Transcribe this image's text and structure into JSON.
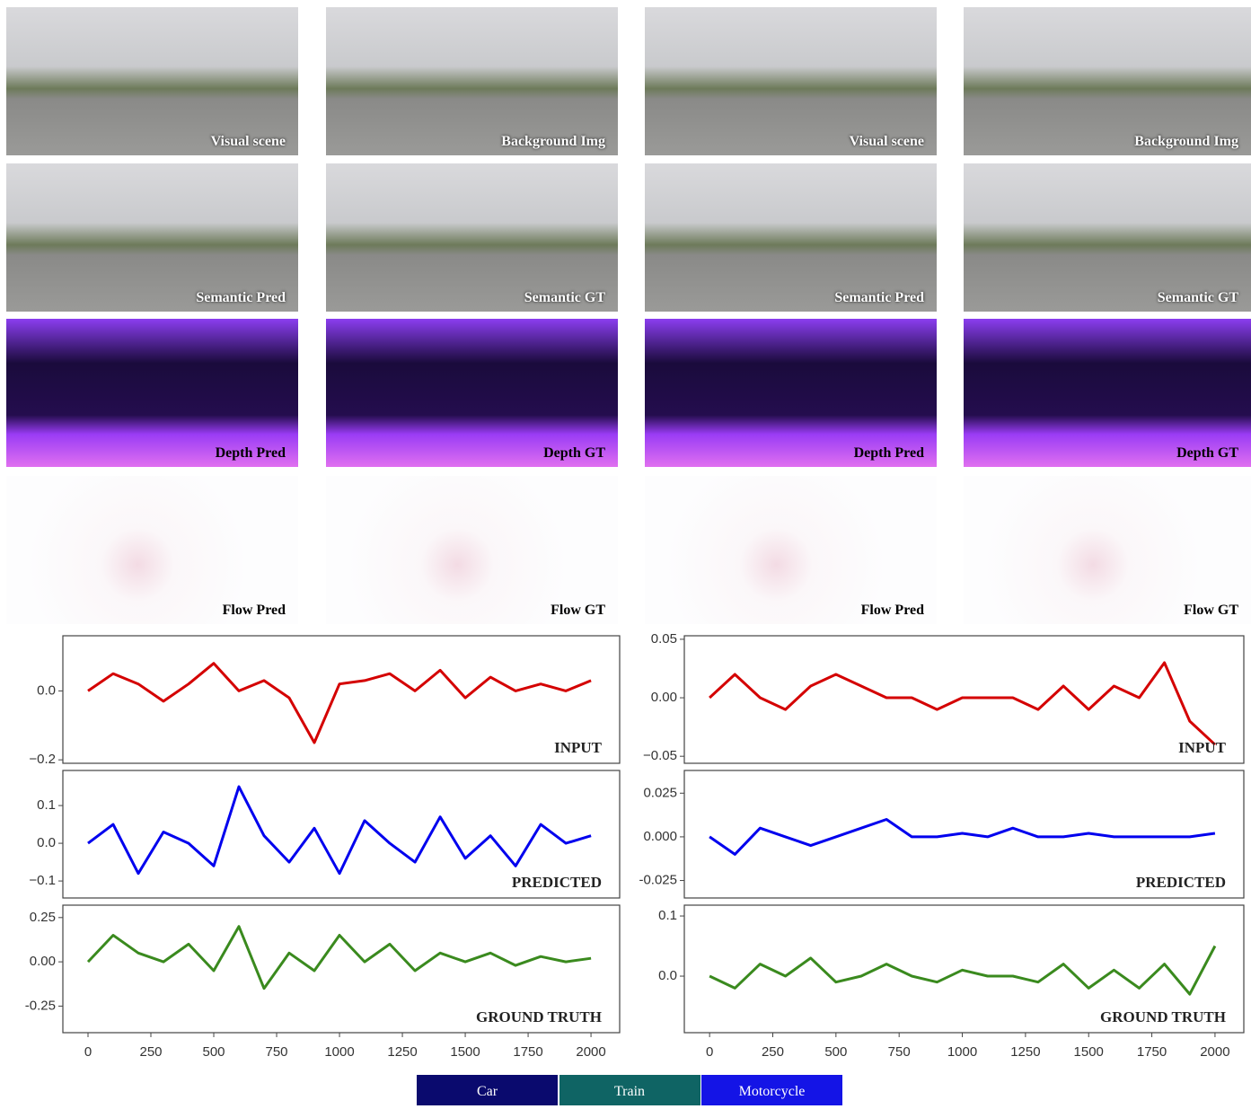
{
  "image_grid": {
    "rows": [
      [
        "Visual scene",
        "Background Img",
        "Visual scene",
        "Background Img"
      ],
      [
        "Semantic Pred",
        "Semantic GT",
        "Semantic Pred",
        "Semantic GT"
      ],
      [
        "Depth Pred",
        "Depth GT",
        "Depth Pred",
        "Depth GT"
      ],
      [
        "Flow Pred",
        "Flow GT",
        "Flow Pred",
        "Flow GT"
      ]
    ]
  },
  "chart_data": [
    {
      "type": "line",
      "label": "INPUT",
      "color": "#d40000",
      "xlim": [
        -100,
        2114
      ],
      "ylim": [
        -0.21,
        0.16
      ],
      "yticks": [
        {
          "value": 0,
          "label": "0.0"
        },
        {
          "value": -0.2,
          "label": "−0.2"
        }
      ],
      "x": [
        0,
        100,
        200,
        300,
        400,
        500,
        600,
        700,
        800,
        900,
        1000,
        1100,
        1200,
        1300,
        1400,
        1500,
        1600,
        1700,
        1800,
        1900,
        2000
      ],
      "values": [
        0.0,
        0.05,
        0.02,
        -0.03,
        0.02,
        0.08,
        0.0,
        0.03,
        -0.02,
        -0.15,
        0.02,
        0.03,
        0.05,
        0.0,
        0.06,
        -0.02,
        0.04,
        0.0,
        0.02,
        0.0,
        0.03
      ]
    },
    {
      "type": "line",
      "label": "PREDICTED",
      "color": "#0000ee",
      "xlim": [
        -100,
        2114
      ],
      "ylim": [
        -0.145,
        0.193
      ],
      "yticks": [
        {
          "value": 0.1,
          "label": "0.1"
        },
        {
          "value": 0,
          "label": "0.0"
        },
        {
          "value": -0.1,
          "label": "−0.1"
        }
      ],
      "x": [
        0,
        100,
        200,
        300,
        400,
        500,
        600,
        700,
        800,
        900,
        1000,
        1100,
        1200,
        1300,
        1400,
        1500,
        1600,
        1700,
        1800,
        1900,
        2000
      ],
      "values": [
        0.0,
        0.05,
        -0.08,
        0.03,
        0.0,
        -0.06,
        0.15,
        0.02,
        -0.05,
        0.04,
        -0.08,
        0.06,
        0.0,
        -0.05,
        0.07,
        -0.04,
        0.02,
        -0.06,
        0.05,
        0.0,
        0.02
      ]
    },
    {
      "type": "line",
      "label": "GROUND TRUTH",
      "color": "#3a8a1e",
      "xlim": [
        -100,
        2114
      ],
      "ylim": [
        -0.4,
        0.32
      ],
      "yticks": [
        0.25,
        {
          "value": 0,
          "label": "0.00"
        },
        -0.25
      ],
      "xticks": [
        0,
        250,
        500,
        750,
        1000,
        1250,
        1500,
        1750,
        2000
      ],
      "x": [
        0,
        100,
        200,
        300,
        400,
        500,
        600,
        700,
        800,
        900,
        1000,
        1100,
        1200,
        1300,
        1400,
        1500,
        1600,
        1700,
        1800,
        1900,
        2000
      ],
      "values": [
        0.0,
        0.15,
        0.05,
        0.0,
        0.1,
        -0.05,
        0.2,
        -0.15,
        0.05,
        -0.05,
        0.15,
        0.0,
        0.1,
        -0.05,
        0.05,
        0.0,
        0.05,
        -0.02,
        0.03,
        0.0,
        0.02
      ]
    },
    {
      "type": "line",
      "label": "INPUT",
      "color": "#d40000",
      "xlim": [
        -100,
        2114
      ],
      "ylim": [
        -0.056,
        0.053
      ],
      "yticks": [
        0.05,
        {
          "value": 0,
          "label": "0.00"
        },
        {
          "value": -0.05,
          "label": "−0.05"
        }
      ],
      "x": [
        0,
        100,
        200,
        300,
        400,
        500,
        600,
        700,
        800,
        900,
        1000,
        1100,
        1200,
        1300,
        1400,
        1500,
        1600,
        1700,
        1800,
        1900,
        2000
      ],
      "values": [
        0.0,
        0.02,
        0.0,
        -0.01,
        0.01,
        0.02,
        0.01,
        0.0,
        0.0,
        -0.01,
        0.0,
        0.0,
        0.0,
        -0.01,
        0.01,
        -0.01,
        0.01,
        0.0,
        0.03,
        -0.02,
        -0.04
      ]
    },
    {
      "type": "line",
      "label": "PREDICTED",
      "color": "#0000ee",
      "xlim": [
        -100,
        2114
      ],
      "ylim": [
        -0.035,
        0.038
      ],
      "yticks": [
        0.025,
        {
          "value": 0,
          "label": "0.000"
        },
        -0.025
      ],
      "x": [
        0,
        100,
        200,
        300,
        400,
        500,
        600,
        700,
        800,
        900,
        1000,
        1100,
        1200,
        1300,
        1400,
        1500,
        1600,
        1700,
        1800,
        1900,
        2000
      ],
      "values": [
        0.0,
        -0.01,
        0.005,
        0.0,
        -0.005,
        0.0,
        0.005,
        0.01,
        0.0,
        0.0,
        0.002,
        0.0,
        0.005,
        0.0,
        0.0,
        0.002,
        0.0,
        0.0,
        0.0,
        0.0,
        0.002
      ]
    },
    {
      "type": "line",
      "label": "GROUND TRUTH",
      "color": "#3a8a1e",
      "xlim": [
        -100,
        2114
      ],
      "ylim": [
        -0.094,
        0.118
      ],
      "yticks": [
        0.1,
        {
          "value": 0,
          "label": "0.0"
        }
      ],
      "xticks": [
        0,
        250,
        500,
        750,
        1000,
        1250,
        1500,
        1750,
        2000
      ],
      "x": [
        0,
        100,
        200,
        300,
        400,
        500,
        600,
        700,
        800,
        900,
        1000,
        1100,
        1200,
        1300,
        1400,
        1500,
        1600,
        1700,
        1800,
        1900,
        2000
      ],
      "values": [
        0.0,
        -0.02,
        0.02,
        0.0,
        0.03,
        -0.01,
        0.0,
        0.02,
        0.0,
        -0.01,
        0.01,
        0.0,
        0.0,
        -0.01,
        0.02,
        -0.02,
        0.01,
        -0.02,
        0.02,
        -0.03,
        0.05
      ]
    }
  ],
  "legend": [
    {
      "label": "Car",
      "color": "#0a0a6e"
    },
    {
      "label": "Train",
      "color": "#0f6464"
    },
    {
      "label": "Motorcycle",
      "color": "#1414e6"
    }
  ]
}
